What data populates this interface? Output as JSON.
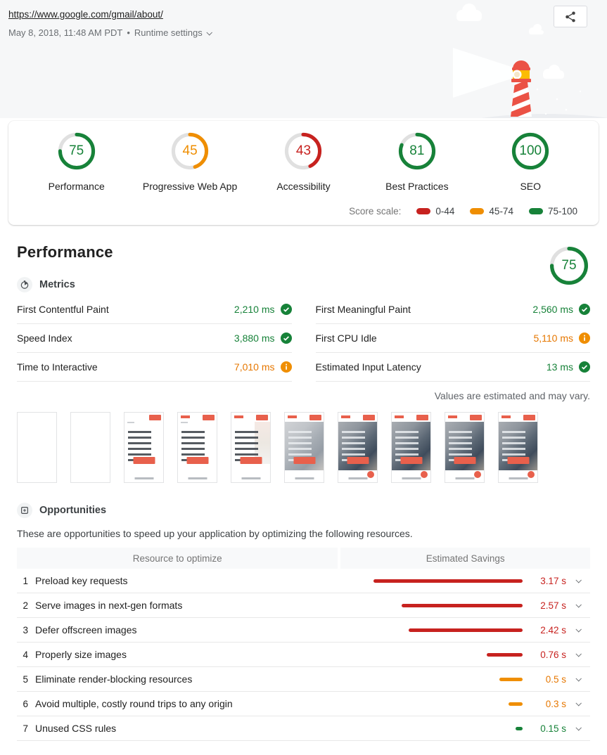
{
  "colors": {
    "green": "#178239",
    "orange": "#ef8e02",
    "orange_text": "#e67700",
    "red": "#c7221f",
    "ring_gray": "#e0e0e0",
    "accent_red_illustration": "#eb5245",
    "accent_yellow_illustration": "#fbbc04"
  },
  "header": {
    "url": "https://www.google.com/gmail/about/",
    "date": "May 8, 2018, 11:48 AM PDT",
    "separator": "•",
    "runtime_settings_label": "Runtime settings"
  },
  "icons": {
    "share": "share-icon",
    "metrics": "timer-icon",
    "opportunities": "opportunity-icon",
    "pass": "check-circle-icon",
    "average": "info-circle-icon",
    "expand": "chevron-down-icon"
  },
  "scores": [
    {
      "label": "Performance",
      "value": 75,
      "band": "green"
    },
    {
      "label": "Progressive Web App",
      "value": 45,
      "band": "orange"
    },
    {
      "label": "Accessibility",
      "value": 43,
      "band": "red"
    },
    {
      "label": "Best Practices",
      "value": 81,
      "band": "green"
    },
    {
      "label": "SEO",
      "value": 100,
      "band": "green"
    }
  ],
  "score_scale": {
    "label": "Score scale:",
    "ranges": [
      {
        "label": "0-44",
        "band": "red"
      },
      {
        "label": "45-74",
        "band": "orange"
      },
      {
        "label": "75-100",
        "band": "green"
      }
    ]
  },
  "performance_section": {
    "title": "Performance",
    "score": 75,
    "metrics_header": "Metrics",
    "metrics": [
      {
        "label": "First Contentful Paint",
        "value": "2,210 ms",
        "status": "pass"
      },
      {
        "label": "First Meaningful Paint",
        "value": "2,560 ms",
        "status": "pass"
      },
      {
        "label": "Speed Index",
        "value": "3,880 ms",
        "status": "pass"
      },
      {
        "label": "First CPU Idle",
        "value": "5,110 ms",
        "status": "average"
      },
      {
        "label": "Time to Interactive",
        "value": "7,010 ms",
        "status": "average"
      },
      {
        "label": "Estimated Input Latency",
        "value": "13 ms",
        "status": "pass"
      }
    ],
    "note": "Values are estimated and may vary.",
    "filmstrip": [
      "blank",
      "blank",
      "text",
      "text-logo",
      "text-faint",
      "photo-light",
      "photo-fab",
      "photo-fab",
      "photo-fab",
      "photo-fab"
    ]
  },
  "opportunities": {
    "header": "Opportunities",
    "description": "These are opportunities to speed up your application by optimizing the following resources.",
    "columns": {
      "resource": "Resource to optimize",
      "savings": "Estimated Savings"
    },
    "max_seconds": 3.17,
    "rows": [
      {
        "num": 1,
        "label": "Preload key requests",
        "value": "3.17 s",
        "seconds": 3.17,
        "band": "red"
      },
      {
        "num": 2,
        "label": "Serve images in next-gen formats",
        "value": "2.57 s",
        "seconds": 2.57,
        "band": "red"
      },
      {
        "num": 3,
        "label": "Defer offscreen images",
        "value": "2.42 s",
        "seconds": 2.42,
        "band": "red"
      },
      {
        "num": 4,
        "label": "Properly size images",
        "value": "0.76 s",
        "seconds": 0.76,
        "band": "red"
      },
      {
        "num": 5,
        "label": "Eliminate render-blocking resources",
        "value": "0.5 s",
        "seconds": 0.5,
        "band": "orange"
      },
      {
        "num": 6,
        "label": "Avoid multiple, costly round trips to any origin",
        "value": "0.3 s",
        "seconds": 0.3,
        "band": "orange"
      },
      {
        "num": 7,
        "label": "Unused CSS rules",
        "value": "0.15 s",
        "seconds": 0.15,
        "band": "green"
      }
    ]
  }
}
